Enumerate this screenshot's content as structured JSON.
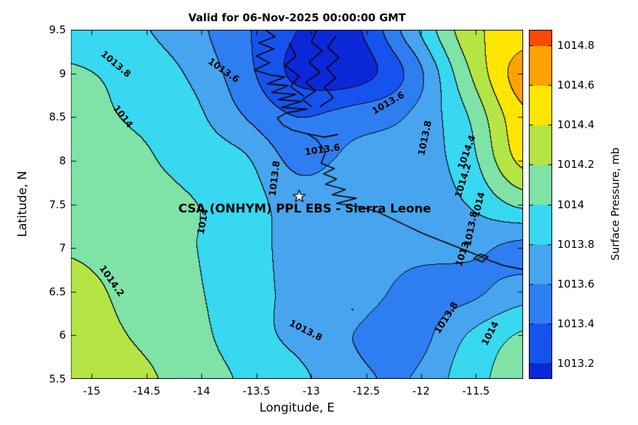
{
  "chart_data": {
    "type": "heatmap",
    "title": "Valid for 06-Nov-2025 00:00:00 GMT",
    "xlabel": "Longitude, E",
    "ylabel": "Latitude, N",
    "colorbar_label": "Surface Pressure, mb",
    "xlim": [
      -15.19,
      -11.07
    ],
    "ylim": [
      5.5,
      9.5
    ],
    "xticks": [
      "-15",
      "-14.5",
      "-14",
      "-13.5",
      "-13",
      "-12.5",
      "-12",
      "-11.5"
    ],
    "yticks": [
      "5.5",
      "6",
      "6.5",
      "7",
      "7.5",
      "8",
      "8.5",
      "9",
      "9.5"
    ],
    "levels": {
      "start": 1013.0,
      "step": 0.2
    },
    "band_colors": [
      "#0a28d8",
      "#1653ee",
      "#2e7ef2",
      "#46a5ee",
      "#37d8f0",
      "#7fe2a7",
      "#b4e545",
      "#ffe600",
      "#ffa200",
      "#fc4b00"
    ],
    "colorbar": {
      "min": 1013.12,
      "max": 1014.88,
      "ticks": [
        "1013.2",
        "1013.4",
        "1013.6",
        "1013.8",
        "1014",
        "1014.2",
        "1014.4",
        "1014.6",
        "1014.8"
      ]
    },
    "grid": {
      "note_order": "rows north (lat 9.5) to south (lat 5.5), columns west to east, surface pressure in mb",
      "values": [
        [
          1013.92,
          1013.85,
          1013.7,
          1013.45,
          1013.2,
          1013.15,
          1013.7,
          1014.3,
          1014.5
        ],
        [
          1014.02,
          1013.95,
          1013.8,
          1013.5,
          1013.15,
          1013.1,
          1013.45,
          1014.15,
          1014.7
        ],
        [
          1014.05,
          1013.99,
          1013.9,
          1013.62,
          1013.4,
          1013.5,
          1013.62,
          1013.98,
          1014.55
        ],
        [
          1014.1,
          1014.05,
          1013.95,
          1013.85,
          1013.55,
          1013.65,
          1013.7,
          1013.9,
          1014.45
        ],
        [
          1014.15,
          1014.1,
          1014.02,
          1013.92,
          1013.7,
          1013.72,
          1013.7,
          1013.8,
          1014.05
        ],
        [
          1014.18,
          1014.1,
          1014.02,
          1013.92,
          1013.72,
          1013.7,
          1013.65,
          1013.65,
          1013.55
        ],
        [
          1014.28,
          1014.15,
          1014.05,
          1013.9,
          1013.75,
          1013.7,
          1013.55,
          1013.55,
          1013.7
        ],
        [
          1014.3,
          1014.2,
          1014.1,
          1013.9,
          1013.75,
          1013.6,
          1013.5,
          1013.8,
          1014.02
        ],
        [
          1014.35,
          1014.25,
          1014.15,
          1013.98,
          1013.85,
          1013.65,
          1013.6,
          1013.9,
          1014.1
        ]
      ]
    },
    "contour_labels": [
      {
        "text": "1013.8",
        "lon": -14.78,
        "lat": 9.1,
        "rot": 40
      },
      {
        "text": "1013.6",
        "lon": -13.8,
        "lat": 9.03,
        "rot": 35
      },
      {
        "text": "1014",
        "lon": -14.72,
        "lat": 8.5,
        "rot": 52
      },
      {
        "text": "1013.6",
        "lon": -12.3,
        "lat": 8.66,
        "rot": -30
      },
      {
        "text": "1013.8",
        "lon": -11.96,
        "lat": 8.26,
        "rot": -78
      },
      {
        "text": "1014.4",
        "lon": -11.58,
        "lat": 8.1,
        "rot": -70
      },
      {
        "text": "1014.2",
        "lon": -11.61,
        "lat": 7.77,
        "rot": -73
      },
      {
        "text": "1014",
        "lon": -11.47,
        "lat": 7.5,
        "rot": -76
      },
      {
        "text": "1013.8",
        "lon": -11.54,
        "lat": 7.22,
        "rot": -79
      },
      {
        "text": "1013",
        "lon": -11.62,
        "lat": 6.93,
        "rot": -72
      },
      {
        "text": "1014",
        "lon": -13.98,
        "lat": 7.3,
        "rot": -80
      },
      {
        "text": "1014.2",
        "lon": -14.82,
        "lat": 6.62,
        "rot": 55
      },
      {
        "text": "1013.8",
        "lon": -13.33,
        "lat": 7.8,
        "rot": -83
      },
      {
        "text": "1013.6",
        "lon": -12.9,
        "lat": 8.12,
        "rot": -8
      },
      {
        "text": "1013.8",
        "lon": -13.05,
        "lat": 6.05,
        "rot": 27
      },
      {
        "text": "1013.8",
        "lon": -11.77,
        "lat": 6.2,
        "rot": -58
      },
      {
        "text": "1014",
        "lon": -11.37,
        "lat": 6.02,
        "rot": -62
      }
    ],
    "station": {
      "lon": -13.11,
      "lat": 7.59,
      "label": "CSA (ONHYM) PPL EBS  - Sierra Leone",
      "label_lon": -13.06,
      "label_lat": 7.45
    },
    "coastlines": [
      [
        [
          -13.42,
          9.5
        ],
        [
          -13.33,
          9.42
        ],
        [
          -13.48,
          9.35
        ],
        [
          -13.34,
          9.28
        ],
        [
          -13.5,
          9.2
        ],
        [
          -13.38,
          9.12
        ],
        [
          -13.52,
          9.04
        ],
        [
          -13.37,
          8.98
        ],
        [
          -13.24,
          8.96
        ],
        [
          -13.4,
          8.88
        ],
        [
          -13.21,
          8.86
        ],
        [
          -13.36,
          8.78
        ],
        [
          -13.14,
          8.76
        ],
        [
          -13.3,
          8.7
        ],
        [
          -13.09,
          8.68
        ],
        [
          -13.27,
          8.61
        ],
        [
          -13.04,
          8.59
        ],
        [
          -13.22,
          8.55
        ],
        [
          -13.31,
          8.49
        ],
        [
          -13.26,
          8.41
        ],
        [
          -13.17,
          8.35
        ],
        [
          -13.04,
          8.31
        ],
        [
          -12.95,
          8.24
        ],
        [
          -12.87,
          8.1
        ],
        [
          -12.91,
          7.97
        ],
        [
          -12.79,
          7.91
        ],
        [
          -12.89,
          7.85
        ],
        [
          -12.77,
          7.79
        ],
        [
          -12.87,
          7.73
        ],
        [
          -12.69,
          7.67
        ],
        [
          -12.81,
          7.61
        ],
        [
          -12.59,
          7.57
        ],
        [
          -12.77,
          7.51
        ],
        [
          -12.54,
          7.47
        ],
        [
          -12.39,
          7.41
        ],
        [
          -12.19,
          7.29
        ],
        [
          -11.99,
          7.17
        ],
        [
          -11.79,
          7.07
        ],
        [
          -11.59,
          6.97
        ],
        [
          -11.47,
          6.91
        ],
        [
          -11.38,
          6.86
        ],
        [
          -11.25,
          6.8
        ],
        [
          -11.02,
          6.74
        ]
      ],
      [
        [
          -12.95,
          9.5
        ],
        [
          -13.0,
          9.36
        ],
        [
          -12.9,
          9.26
        ],
        [
          -13.02,
          9.13
        ],
        [
          -12.92,
          9.01
        ],
        [
          -13.05,
          8.9
        ],
        [
          -12.96,
          8.8
        ],
        [
          -13.08,
          8.7
        ],
        [
          -13.0,
          8.62
        ]
      ],
      [
        [
          -13.2,
          9.34
        ],
        [
          -13.14,
          9.2
        ],
        [
          -13.24,
          9.09
        ],
        [
          -13.11,
          8.97
        ],
        [
          -13.19,
          8.85
        ],
        [
          -13.07,
          8.74
        ]
      ],
      [
        [
          -12.78,
          9.42
        ],
        [
          -12.85,
          9.3
        ],
        [
          -12.75,
          9.18
        ],
        [
          -12.86,
          9.06
        ],
        [
          -12.78,
          8.95
        ],
        [
          -12.88,
          8.84
        ],
        [
          -12.8,
          8.72
        ],
        [
          -12.92,
          8.62
        ]
      ],
      [
        [
          -13.04,
          8.31
        ],
        [
          -12.88,
          8.27
        ],
        [
          -12.76,
          8.3
        ]
      ],
      [
        [
          -11.52,
          6.88
        ],
        [
          -11.46,
          6.93
        ],
        [
          -11.39,
          6.9
        ],
        [
          -11.44,
          6.84
        ],
        [
          -11.52,
          6.88
        ]
      ],
      [
        [
          -12.63,
          6.3
        ],
        [
          -12.62,
          6.29
        ]
      ]
    ]
  }
}
